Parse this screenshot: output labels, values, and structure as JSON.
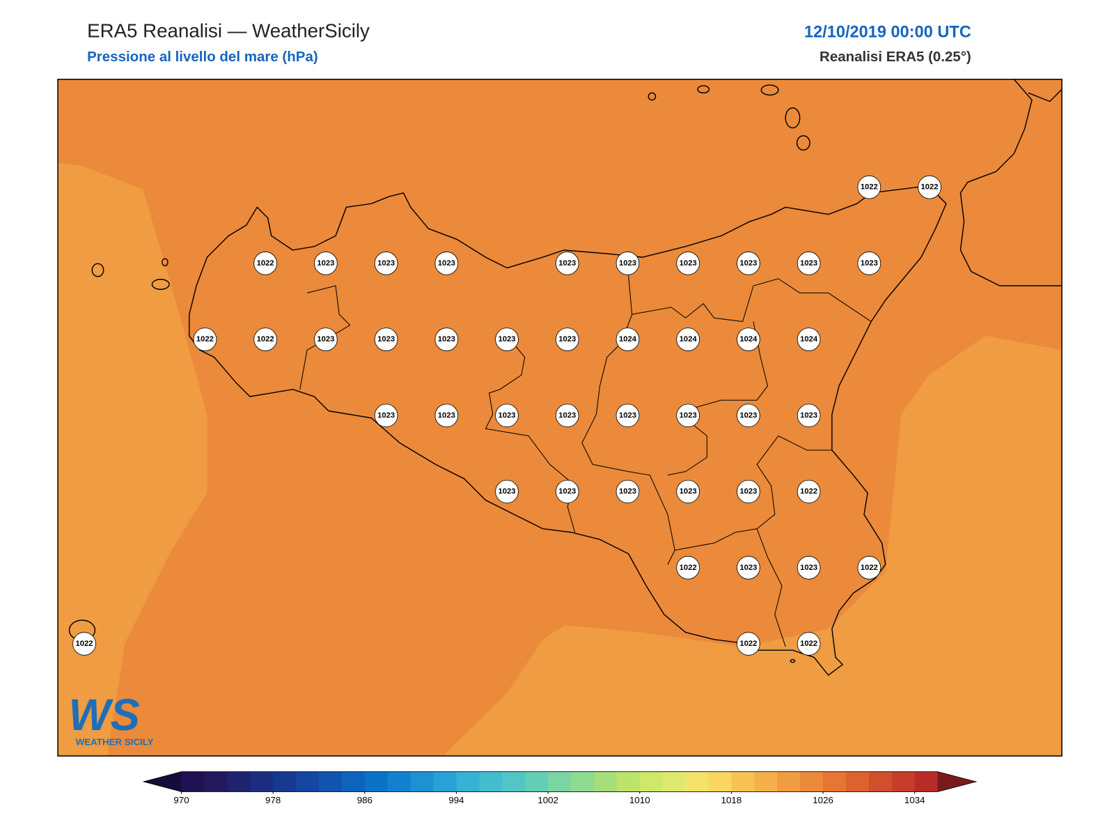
{
  "header": {
    "title": "ERA5 Reanalisi — WeatherSicily",
    "subtitle": "Pressione al livello del mare (hPa)",
    "datetime": "12/10/2019 00:00 UTC",
    "source": "Reanalisi ERA5 (0.25°)"
  },
  "stations": {
    "rows": [
      [
        null,
        null,
        null,
        null,
        null,
        null,
        null,
        null,
        null,
        null,
        null,
        null,
        null,
        1022,
        1022
      ],
      [
        null,
        null,
        null,
        1022,
        1023,
        1023,
        1023,
        null,
        1023,
        1023,
        1023,
        1023,
        1023,
        1023,
        null
      ],
      [
        null,
        null,
        1022,
        1022,
        1023,
        1023,
        1023,
        1023,
        1023,
        1024,
        1024,
        1024,
        1024,
        null,
        null
      ],
      [
        null,
        null,
        null,
        null,
        null,
        1023,
        1023,
        1023,
        1023,
        1023,
        1023,
        1023,
        1023,
        null,
        null
      ],
      [
        null,
        null,
        null,
        null,
        null,
        null,
        null,
        1023,
        1023,
        1023,
        1023,
        1023,
        1022,
        null,
        null
      ],
      [
        null,
        null,
        null,
        null,
        null,
        null,
        null,
        null,
        null,
        null,
        1022,
        1023,
        1023,
        1022,
        null
      ],
      [
        1022,
        null,
        null,
        null,
        null,
        null,
        null,
        null,
        null,
        null,
        null,
        1022,
        1022,
        null,
        null
      ]
    ]
  },
  "colorbar": {
    "lim": [
      970,
      1036
    ],
    "ticks": [
      970,
      978,
      986,
      994,
      1002,
      1010,
      1018,
      1026,
      1034
    ],
    "colors": [
      "#1f1152",
      "#22195f",
      "#1f236e",
      "#1c2d80",
      "#17388f",
      "#1546a0",
      "#1154ae",
      "#0e63bb",
      "#0c72c6",
      "#1181cd",
      "#1d91d2",
      "#2aa1d6",
      "#37b2d6",
      "#44bdcf",
      "#52c6c4",
      "#63cfb5",
      "#79d6a2",
      "#8fdb8f",
      "#a6df7a",
      "#bce46c",
      "#cfe76a",
      "#dfe870",
      "#f4e36b",
      "#fad561",
      "#f8c354",
      "#f5b04b",
      "#f09c42",
      "#eb8a3a",
      "#e57633",
      "#dd622e",
      "#d24f2b",
      "#c63d29",
      "#b82c27"
    ],
    "under_color": "#170b3b",
    "over_color": "#7a1b1b"
  },
  "logo": {
    "mark": "WS",
    "text": "WEATHER SICILY"
  }
}
